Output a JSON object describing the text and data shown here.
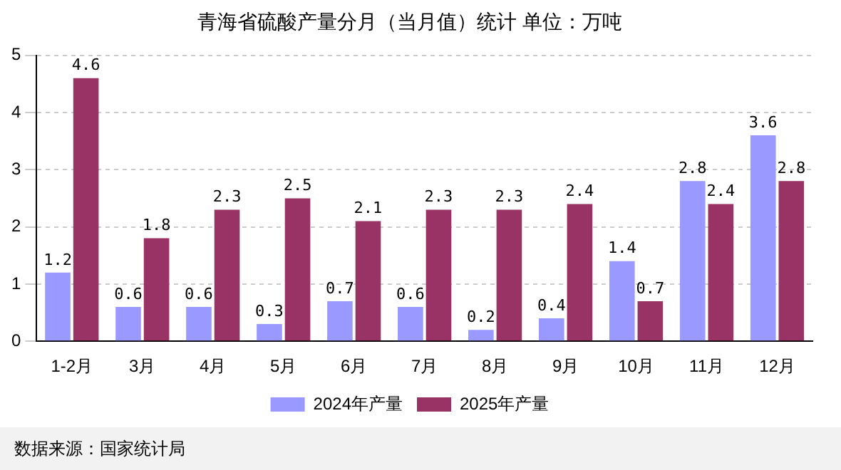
{
  "chart_data": {
    "type": "bar",
    "title": "青海省硫酸产量分月（当月值）统计 单位：万吨",
    "categories": [
      "1-2月",
      "3月",
      "4月",
      "5月",
      "6月",
      "7月",
      "8月",
      "9月",
      "10月",
      "11月",
      "12月"
    ],
    "series": [
      {
        "name": "2024年产量",
        "color": "#9999ff",
        "values": [
          1.2,
          0.6,
          0.6,
          0.3,
          0.7,
          0.6,
          0.2,
          0.4,
          1.4,
          2.8,
          3.6
        ]
      },
      {
        "name": "2025年产量",
        "color": "#993366",
        "values": [
          4.6,
          1.8,
          2.3,
          2.5,
          2.1,
          2.3,
          2.3,
          2.4,
          0.7,
          2.4,
          2.8
        ]
      }
    ],
    "ylim": [
      0,
      5
    ],
    "yticks": [
      0,
      1,
      2,
      3,
      4,
      5
    ],
    "grid": "y",
    "legend": "bottom",
    "data_labels": true,
    "annotations": [
      "数据来源：国家统计局"
    ]
  }
}
